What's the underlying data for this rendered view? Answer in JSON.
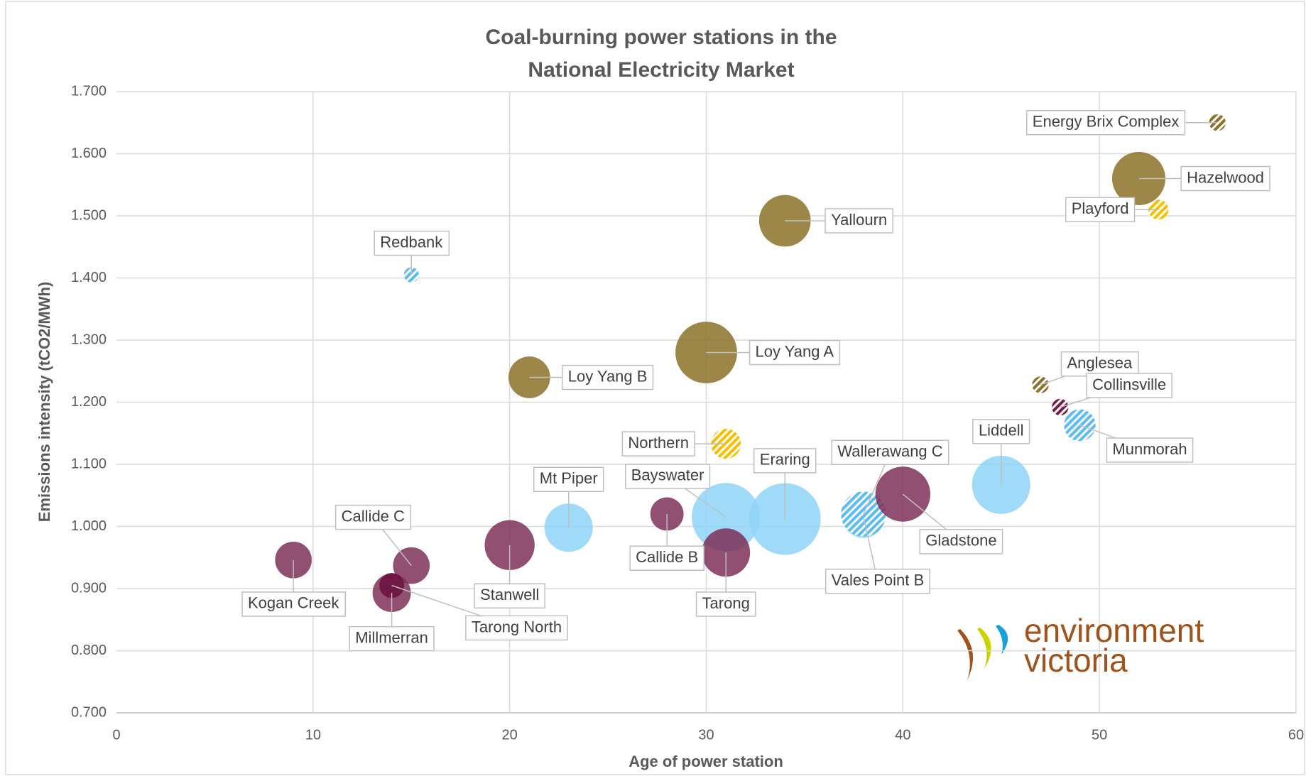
{
  "chart_data": {
    "type": "bubble",
    "title": [
      "Coal-burning power stations in the",
      "National Electricity Market"
    ],
    "x_label": "Age of power station",
    "y_label": "Emissions intensity (tCO2/MWh)",
    "xlim": [
      0,
      60
    ],
    "xticks": [
      0,
      10,
      20,
      30,
      40,
      50,
      60
    ],
    "ylim": [
      0.7,
      1.7
    ],
    "yticks": [
      {
        "value": 0.7,
        "label": "0.700"
      },
      {
        "value": 0.8,
        "label": "0.800"
      },
      {
        "value": 0.9,
        "label": "0.900"
      },
      {
        "value": 1.0,
        "label": "1.000"
      },
      {
        "value": 1.1,
        "label": "1.100"
      },
      {
        "value": 1.2,
        "label": "1.200"
      },
      {
        "value": 1.3,
        "label": "1.300"
      },
      {
        "value": 1.4,
        "label": "1.400"
      },
      {
        "value": 1.5,
        "label": "1.500"
      },
      {
        "value": 1.6,
        "label": "1.600"
      },
      {
        "value": 1.7,
        "label": "1.700"
      }
    ],
    "grid": true,
    "points": [
      {
        "name": "Energy Brix Complex",
        "x": 56,
        "y": 1.65,
        "size": 10,
        "color": "#8b7128",
        "hatched": true
      },
      {
        "name": "Hazelwood",
        "x": 52,
        "y": 1.56,
        "size": 32,
        "color": "#8b7128",
        "hatched": false
      },
      {
        "name": "Playford",
        "x": 53,
        "y": 1.51,
        "size": 12,
        "color": "#f5c000",
        "hatched": true
      },
      {
        "name": "Yallourn",
        "x": 34,
        "y": 1.492,
        "size": 31,
        "color": "#8b7128",
        "hatched": false
      },
      {
        "name": "Redbank",
        "x": 15,
        "y": 1.405,
        "size": 9,
        "color": "#5bbcf0",
        "hatched": true
      },
      {
        "name": "Loy Yang A",
        "x": 30,
        "y": 1.28,
        "size": 37,
        "color": "#8b7128",
        "hatched": false
      },
      {
        "name": "Loy Yang B",
        "x": 21,
        "y": 1.24,
        "size": 25,
        "color": "#8b7128",
        "hatched": false
      },
      {
        "name": "Anglesea",
        "x": 47,
        "y": 1.228,
        "size": 10,
        "color": "#8b7128",
        "hatched": true
      },
      {
        "name": "Collinsville",
        "x": 48,
        "y": 1.192,
        "size": 10,
        "color": "#7a1a48",
        "hatched": true
      },
      {
        "name": "Munmorah",
        "x": 49,
        "y": 1.163,
        "size": 19,
        "color": "#5bbcf0",
        "hatched": true
      },
      {
        "name": "Northern",
        "x": 31,
        "y": 1.133,
        "size": 18,
        "color": "#f5c000",
        "hatched": true
      },
      {
        "name": "Liddell",
        "x": 45,
        "y": 1.067,
        "size": 35,
        "color": "#8fd3f8",
        "hatched": false
      },
      {
        "name": "Vales Point B",
        "x": 38,
        "y": 1.015,
        "size": 25,
        "color": "#8fd3f8",
        "hatched": false
      },
      {
        "name": "Wallerawang C",
        "x": 38,
        "y": 1.02,
        "size": 27,
        "color": "#5bbcf0",
        "hatched": true
      },
      {
        "name": "Gladstone",
        "x": 40,
        "y": 1.052,
        "size": 33,
        "color": "#7e3058",
        "hatched": false
      },
      {
        "name": "Eraring",
        "x": 34,
        "y": 1.012,
        "size": 43,
        "color": "#8fd3f8",
        "hatched": false
      },
      {
        "name": "Bayswater",
        "x": 31,
        "y": 1.015,
        "size": 41,
        "color": "#8fd3f8",
        "hatched": false
      },
      {
        "name": "Tarong",
        "x": 31,
        "y": 0.958,
        "size": 29,
        "color": "#7e3058",
        "hatched": false
      },
      {
        "name": "Callide B",
        "x": 28,
        "y": 1.02,
        "size": 20,
        "color": "#7e3058",
        "hatched": false
      },
      {
        "name": "Mt Piper",
        "x": 23,
        "y": 0.998,
        "size": 29,
        "color": "#8fd3f8",
        "hatched": false
      },
      {
        "name": "Stanwell",
        "x": 20,
        "y": 0.97,
        "size": 30,
        "color": "#7e3058",
        "hatched": false
      },
      {
        "name": "Callide C",
        "x": 15,
        "y": 0.937,
        "size": 22,
        "color": "#7e3058",
        "hatched": false
      },
      {
        "name": "Millmerran",
        "x": 14,
        "y": 0.893,
        "size": 23,
        "color": "#7e3058",
        "hatched": false
      },
      {
        "name": "Tarong North",
        "x": 14,
        "y": 0.905,
        "size": 15,
        "color": "#6b0f3e",
        "hatched": false
      },
      {
        "name": "Kogan Creek",
        "x": 9,
        "y": 0.946,
        "size": 22,
        "color": "#7e3058",
        "hatched": false
      }
    ],
    "logo": [
      "environment",
      "victoria"
    ]
  }
}
